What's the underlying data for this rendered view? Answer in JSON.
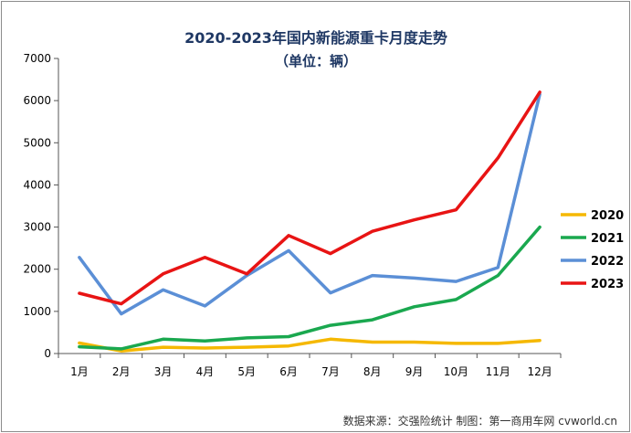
{
  "chart_data": {
    "type": "line",
    "title": "2020-2023年国内新能源重卡月度走势",
    "subtitle": "（单位：辆）",
    "categories": [
      "1月",
      "2月",
      "3月",
      "4月",
      "5月",
      "6月",
      "7月",
      "8月",
      "9月",
      "10月",
      "11月",
      "12月"
    ],
    "ylim": [
      0,
      7000
    ],
    "yticks": [
      0,
      1000,
      2000,
      3000,
      4000,
      5000,
      6000,
      7000
    ],
    "grid": false,
    "legend_position": "right",
    "series": [
      {
        "name": "2020",
        "color": "#f5b800",
        "values": [
          250,
          60,
          150,
          130,
          150,
          180,
          340,
          270,
          270,
          240,
          240,
          310
        ]
      },
      {
        "name": "2021",
        "color": "#1aa84f",
        "values": [
          160,
          110,
          340,
          300,
          370,
          400,
          670,
          800,
          1110,
          1280,
          1850,
          3000
        ]
      },
      {
        "name": "2022",
        "color": "#5b8fd6",
        "values": [
          2280,
          940,
          1510,
          1130,
          1850,
          2440,
          1440,
          1850,
          1790,
          1710,
          2040,
          6150
        ]
      },
      {
        "name": "2023",
        "color": "#e81414",
        "values": [
          1430,
          1180,
          1890,
          2280,
          1890,
          2800,
          2370,
          2900,
          3170,
          3410,
          4640,
          6200
        ]
      }
    ],
    "source_note": "数据来源：交强险统计    制图：第一商用车网 cvworld.cn"
  }
}
